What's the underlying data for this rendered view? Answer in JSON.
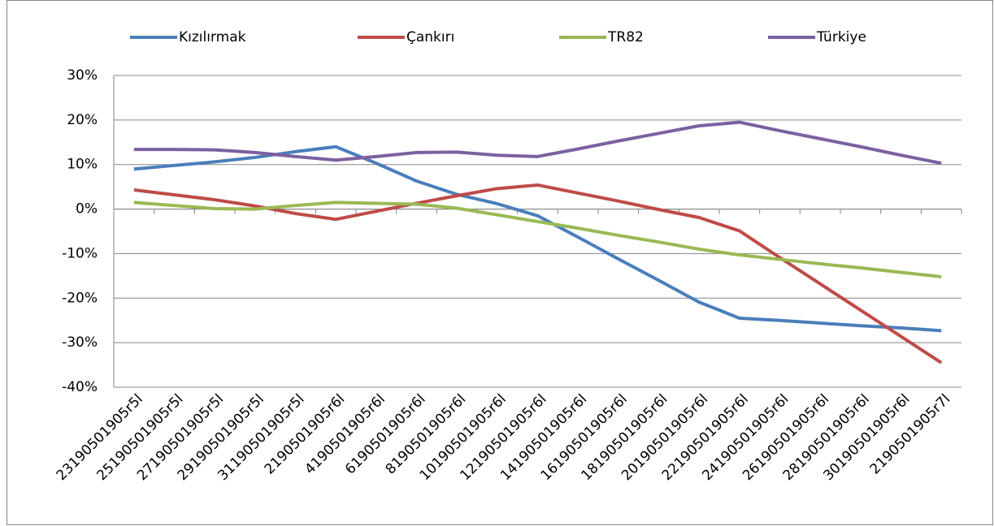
{
  "chart_data": {
    "type": "line",
    "categories": [
      "23190501905r5l",
      "25190501905r5l",
      "27190501905r5l",
      "29190501905r5l",
      "31190501905r5l",
      "2190501905r6l",
      "4190501905r6l",
      "6190501905r6l",
      "8190501905r6l",
      "10190501905r6l",
      "12190501905r6l",
      "14190501905r6l",
      "16190501905r6l",
      "18190501905r6l",
      "20190501905r6l",
      "22190501905r6l",
      "24190501905r6l",
      "26190501905r6l",
      "28190501905r6l",
      "30190501905r6l",
      "2190501905r7l"
    ],
    "series": [
      {
        "name": "Kızılırmak",
        "color": "#4a7ebb",
        "values": [
          9,
          9.8,
          10.6,
          11.6,
          12.9,
          14,
          10.3,
          6.3,
          3.3,
          1.2,
          -1.5,
          -6.3,
          -11.2,
          -16,
          -20.9,
          -24.5,
          -25,
          -25.6,
          -26.2,
          -26.7,
          -27.3
        ]
      },
      {
        "name": "Çankırı",
        "color": "#be4b48",
        "values": [
          4.3,
          3.2,
          2.1,
          0.7,
          -1,
          -2.3,
          -0.5,
          1.3,
          3,
          4.6,
          5.4,
          3.6,
          1.8,
          -0.1,
          -1.9,
          -4.9,
          -10.9,
          -16.8,
          -22.7,
          -28.6,
          -34.5
        ]
      },
      {
        "name": "TR82",
        "color": "#98b954",
        "values": [
          1.5,
          0.8,
          0.1,
          0,
          0.8,
          1.5,
          1.3,
          1.1,
          0.2,
          -1.3,
          -2.8,
          -4.3,
          -5.9,
          -7.4,
          -9,
          -10.3,
          -11.3,
          -12.3,
          -13.2,
          -14.2,
          -15.2
        ]
      },
      {
        "name": "Türkiye",
        "color": "#7d60a0",
        "values": [
          13.4,
          13.4,
          13.3,
          12.7,
          11.8,
          11,
          11.8,
          12.7,
          12.8,
          12.1,
          11.8,
          13.5,
          15.3,
          17,
          18.7,
          19.5,
          17.6,
          15.8,
          14,
          12.1,
          10.3
        ]
      }
    ],
    "ylim": [
      -40,
      30
    ],
    "yticks": [
      {
        "value": -40,
        "label": "-40%"
      },
      {
        "value": -30,
        "label": "-30%"
      },
      {
        "value": -20,
        "label": "-20%"
      },
      {
        "value": -10,
        "label": "-10%"
      },
      {
        "value": 0,
        "label": "0%"
      },
      {
        "value": 10,
        "label": "10%"
      },
      {
        "value": 20,
        "label": "20%"
      },
      {
        "value": 30,
        "label": "30%"
      }
    ],
    "grid": true,
    "legend": "top"
  }
}
